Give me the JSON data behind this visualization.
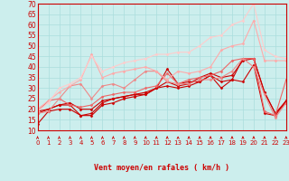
{
  "xlabel": "Vent moyen/en rafales ( km/h )",
  "xlim": [
    0,
    23
  ],
  "ylim": [
    10,
    70
  ],
  "yticks": [
    10,
    15,
    20,
    25,
    30,
    35,
    40,
    45,
    50,
    55,
    60,
    65,
    70
  ],
  "xticks": [
    0,
    1,
    2,
    3,
    4,
    5,
    6,
    7,
    8,
    9,
    10,
    11,
    12,
    13,
    14,
    15,
    16,
    17,
    18,
    19,
    20,
    21,
    22,
    23
  ],
  "bg_color": "#cceeed",
  "grid_color": "#aadddd",
  "series": [
    {
      "x": [
        0,
        1,
        2,
        3,
        4,
        5,
        6,
        7,
        8,
        9,
        10,
        11,
        12,
        13,
        14,
        15,
        16,
        17,
        18,
        19,
        20,
        21,
        22,
        23
      ],
      "y": [
        13,
        19,
        20,
        20,
        17,
        17,
        22,
        23,
        25,
        26,
        27,
        30,
        39,
        32,
        33,
        33,
        36,
        33,
        34,
        33,
        41,
        18,
        17,
        24
      ],
      "color": "#cc0000",
      "lw": 0.8,
      "marker": "D",
      "ms": 1.5
    },
    {
      "x": [
        0,
        1,
        2,
        3,
        4,
        5,
        6,
        7,
        8,
        9,
        10,
        11,
        12,
        13,
        14,
        15,
        16,
        17,
        18,
        19,
        20,
        21,
        22,
        23
      ],
      "y": [
        19,
        20,
        22,
        22,
        17,
        18,
        23,
        25,
        26,
        27,
        27,
        30,
        31,
        30,
        31,
        33,
        36,
        30,
        34,
        44,
        44,
        28,
        18,
        24
      ],
      "color": "#cc0000",
      "lw": 0.8,
      "marker": "D",
      "ms": 1.5
    },
    {
      "x": [
        0,
        1,
        2,
        3,
        4,
        5,
        6,
        7,
        8,
        9,
        10,
        11,
        12,
        13,
        14,
        15,
        16,
        17,
        18,
        19,
        20,
        21,
        22,
        23
      ],
      "y": [
        18,
        20,
        22,
        23,
        20,
        20,
        24,
        25,
        26,
        27,
        28,
        30,
        33,
        31,
        32,
        35,
        37,
        35,
        36,
        43,
        44,
        28,
        18,
        23
      ],
      "color": "#cc0000",
      "lw": 0.8,
      "marker": "D",
      "ms": 1.5
    },
    {
      "x": [
        0,
        1,
        2,
        3,
        4,
        5,
        6,
        7,
        8,
        9,
        10,
        11,
        12,
        13,
        14,
        15,
        16,
        17,
        18,
        19,
        20,
        21,
        22,
        23
      ],
      "y": [
        19,
        24,
        25,
        22,
        21,
        22,
        26,
        27,
        28,
        28,
        30,
        31,
        37,
        32,
        34,
        35,
        36,
        38,
        43,
        44,
        44,
        19,
        17,
        34
      ],
      "color": "#ee6666",
      "lw": 0.8,
      "marker": "D",
      "ms": 1.5
    },
    {
      "x": [
        0,
        1,
        2,
        3,
        4,
        5,
        6,
        7,
        8,
        9,
        10,
        11,
        12,
        13,
        14,
        15,
        16,
        17,
        18,
        19,
        20,
        21,
        22,
        23
      ],
      "y": [
        18,
        19,
        25,
        31,
        32,
        25,
        31,
        32,
        30,
        34,
        38,
        38,
        33,
        32,
        32,
        34,
        34,
        35,
        38,
        44,
        40,
        27,
        16,
        23
      ],
      "color": "#ee8888",
      "lw": 0.8,
      "marker": "D",
      "ms": 1.5
    },
    {
      "x": [
        0,
        1,
        2,
        3,
        4,
        5,
        6,
        7,
        8,
        9,
        10,
        11,
        12,
        13,
        14,
        15,
        16,
        17,
        18,
        19,
        20,
        21,
        22,
        23
      ],
      "y": [
        20,
        24,
        28,
        31,
        34,
        46,
        35,
        37,
        38,
        39,
        40,
        38,
        34,
        38,
        37,
        38,
        40,
        48,
        50,
        51,
        62,
        43,
        43,
        43
      ],
      "color": "#ffaaaa",
      "lw": 0.8,
      "marker": "D",
      "ms": 1.5
    },
    {
      "x": [
        0,
        1,
        2,
        3,
        4,
        5,
        6,
        7,
        8,
        9,
        10,
        11,
        12,
        13,
        14,
        15,
        16,
        17,
        18,
        19,
        20,
        21,
        22,
        23
      ],
      "y": [
        19,
        23,
        30,
        32,
        35,
        45,
        38,
        40,
        42,
        43,
        44,
        46,
        46,
        47,
        47,
        50,
        54,
        55,
        60,
        62,
        70,
        48,
        45,
        44
      ],
      "color": "#ffcccc",
      "lw": 0.8,
      "marker": "D",
      "ms": 1.5
    }
  ],
  "arrow_color": "#cc0000",
  "xlabel_color": "#cc0000",
  "tick_color": "#cc0000",
  "axis_color": "#cc0000"
}
